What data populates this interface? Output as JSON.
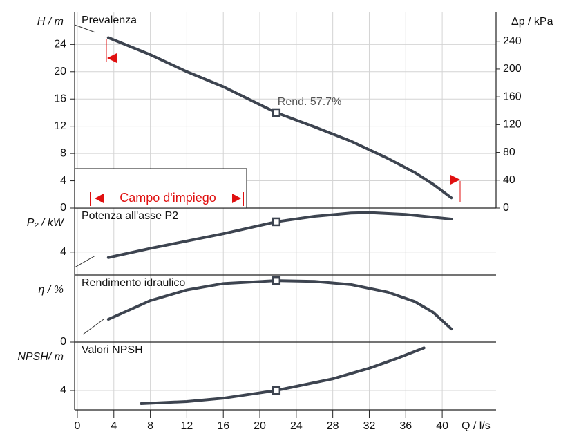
{
  "chart_data": [
    {
      "type": "line",
      "title": "Prevalenza",
      "ylabel": "H / m",
      "y2label": "Δp / kPa",
      "xlim": [
        -0.3,
        45.9
      ],
      "ylim": [
        0,
        28.7
      ],
      "yticks": [
        0,
        4,
        8,
        12,
        16,
        20,
        24
      ],
      "y2lim": [
        0,
        281.5
      ],
      "y2ticks": [
        0,
        40,
        80,
        120,
        160,
        200,
        240
      ],
      "x": [
        3.4,
        8,
        12,
        16,
        21.8,
        26,
        30,
        34,
        37,
        39,
        41
      ],
      "series": [
        {
          "color": "#3d4450",
          "values": [
            25,
            22.5,
            20,
            17.8,
            14,
            11.9,
            9.8,
            7.3,
            5.2,
            3.5,
            1.5
          ]
        }
      ],
      "duty_point": {
        "x": 21.8,
        "y": 14
      },
      "annotations": [
        "Rend.  57.7%",
        "Campo d'impiego"
      ],
      "grid": true
    },
    {
      "type": "line",
      "title": "Potenza all'asse P2",
      "ylabel": "P₂ / kW",
      "xlim": [
        -0.3,
        45.9
      ],
      "ylim": [
        1.5,
        8.8
      ],
      "yticks": [
        4
      ],
      "x": [
        3.4,
        8,
        12,
        16,
        21.8,
        26,
        30,
        32,
        36,
        41
      ],
      "series": [
        {
          "color": "#3d4450",
          "values": [
            3.4,
            4.4,
            5.2,
            6,
            7.3,
            7.9,
            8.25,
            8.3,
            8.1,
            7.6
          ]
        }
      ],
      "duty_point": {
        "x": 21.8,
        "y": 7.3
      },
      "grid": true
    },
    {
      "type": "line",
      "title": "Rendimento idraulico",
      "ylabel": "η / %",
      "xlim": [
        -0.3,
        45.9
      ],
      "ylim": [
        0,
        63
      ],
      "yticks": [
        0
      ],
      "x": [
        3.4,
        8,
        12,
        16,
        21.8,
        26,
        30,
        34,
        37,
        39,
        41
      ],
      "series": [
        {
          "color": "#3d4450",
          "values": [
            21.4,
            39,
            49,
            55,
            57.7,
            57,
            54,
            47,
            38,
            28,
            12.3
          ]
        }
      ],
      "duty_point": {
        "x": 21.8,
        "y": 57.7
      },
      "grid": true
    },
    {
      "type": "line",
      "title": "Valori NPSH",
      "ylabel": "NPSH/ m",
      "xlabel": "Q / l/s",
      "xlim": [
        -0.3,
        45.9
      ],
      "ylim": [
        2,
        9
      ],
      "yticks": [
        4
      ],
      "xticks": [
        0,
        4,
        8,
        12,
        16,
        20,
        24,
        28,
        32,
        36,
        40
      ],
      "x": [
        7,
        12,
        16,
        21.8,
        28,
        32,
        35,
        38
      ],
      "series": [
        {
          "color": "#3d4450",
          "values": [
            2.64,
            2.86,
            3.2,
            4,
            5.2,
            6.3,
            7.3,
            8.4
          ]
        }
      ],
      "duty_point": {
        "x": 21.8,
        "y": 4
      },
      "grid": true
    }
  ]
}
